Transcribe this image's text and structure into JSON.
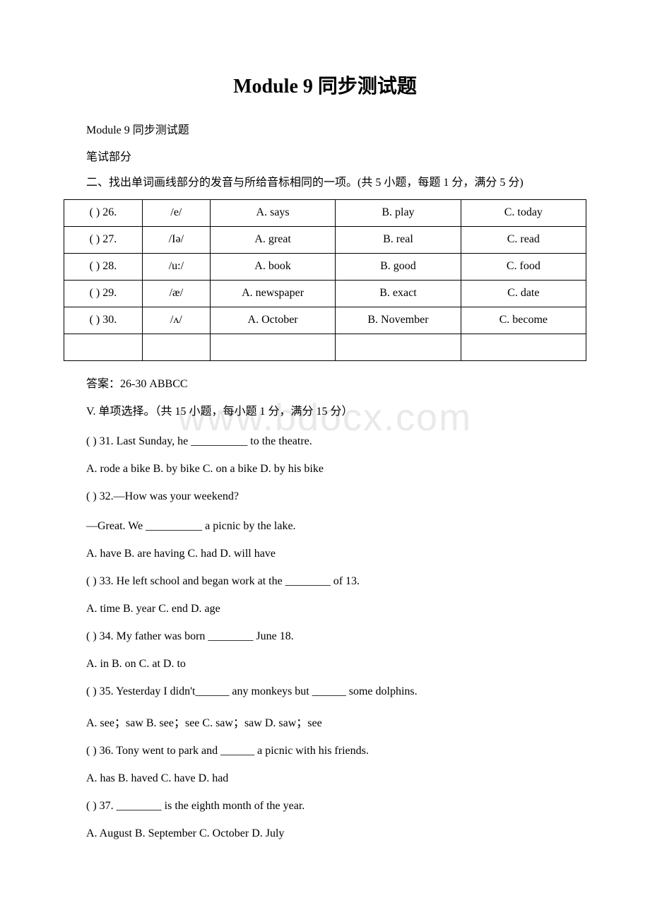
{
  "watermark": "www.bdocx.com",
  "title": "Module 9 同步测试题",
  "subtitle": "Module 9 同步测试题",
  "section_label": "笔试部分",
  "instruction_2": "二、找出单词画线部分的发音与所给音标相同的一项。(共 5 小题，每题 1 分，满分 5 分)",
  "table": {
    "rows": [
      {
        "num": "(  ) 26.",
        "phonetic": "/e/",
        "a": "A. says",
        "b": "B. play",
        "c": "C. today"
      },
      {
        "num": "(  ) 27.",
        "phonetic": "/Iə/",
        "a": "A. great",
        "b": "B. real",
        "c": "C. read"
      },
      {
        "num": "(  ) 28.",
        "phonetic": "/u:/",
        "a": "A. book",
        "b": "B. good",
        "c": "C. food"
      },
      {
        "num": "(  ) 29.",
        "phonetic": "/æ/",
        "a": "A. newspaper",
        "b": "B. exact",
        "c": "C. date"
      },
      {
        "num": "(  ) 30.",
        "phonetic": "/ʌ/",
        "a": "A. October",
        "b": "B. November",
        "c": "C. become"
      }
    ]
  },
  "answer_2": "答案：26-30 ABBCC",
  "section_5_heading": "V. 单项选择。（共 15 小题，每小题 1 分，满分 15 分）",
  "q31": "(  ) 31. Last Sunday, he __________ to the theatre.",
  "q31_opts": "A. rode a bike B. by bike C. on a bike D. by his bike",
  "q32": "(  ) 32.—How was your weekend?",
  "q32_line2": "—Great. We __________ a picnic by the lake.",
  "q32_opts": "A. have B. are having C. had D. will have",
  "q33": "(  ) 33. He left school and began work at the ________ of 13.",
  "q33_opts": "A. time B. year C. end D. age",
  "q34": "(  ) 34. My father was born ________ June 18.",
  "q34_opts": "A. in B. on C. at D. to",
  "q35": "(  ) 35. Yesterday I didn't______ any monkeys but ______ some dolphins.",
  "q35_opts": "A. see；saw B. see；see C. saw；saw D. saw；see",
  "q36": "(  ) 36. Tony went to park and ______ a picnic with his friends.",
  "q36_opts": "A. has B. haved C. have D. had",
  "q37": "(  ) 37. ________ is the eighth month of the year.",
  "q37_opts": "A. August B. September C. October D. July"
}
